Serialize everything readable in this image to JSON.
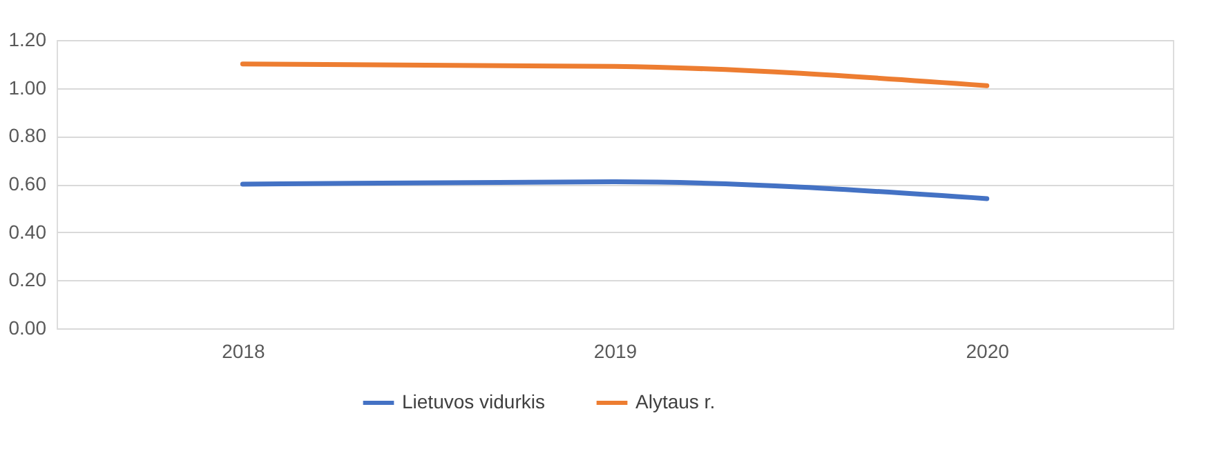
{
  "chart_data": {
    "type": "line",
    "categories": [
      "2018",
      "2019",
      "2020"
    ],
    "series": [
      {
        "name": "Lietuvos vidurkis",
        "color": "#4472c4",
        "values": [
          0.6,
          0.61,
          0.54
        ]
      },
      {
        "name": "Alytaus r.",
        "color": "#ed7d31",
        "values": [
          1.1,
          1.09,
          1.01
        ]
      }
    ],
    "ylim": [
      0,
      1.2
    ],
    "yticks": [
      {
        "value": 0,
        "label": "0.00"
      },
      {
        "value": 0.2,
        "label": "0.20"
      },
      {
        "value": 0.4,
        "label": "0.40"
      },
      {
        "value": 0.6,
        "label": "0.60"
      },
      {
        "value": 0.8,
        "label": "0.80"
      },
      {
        "value": 1.0,
        "label": "1.00"
      },
      {
        "value": 1.2,
        "label": "1.20"
      }
    ],
    "grid": "y",
    "legend": "bottom",
    "marker": "none",
    "line_style": "solid"
  }
}
